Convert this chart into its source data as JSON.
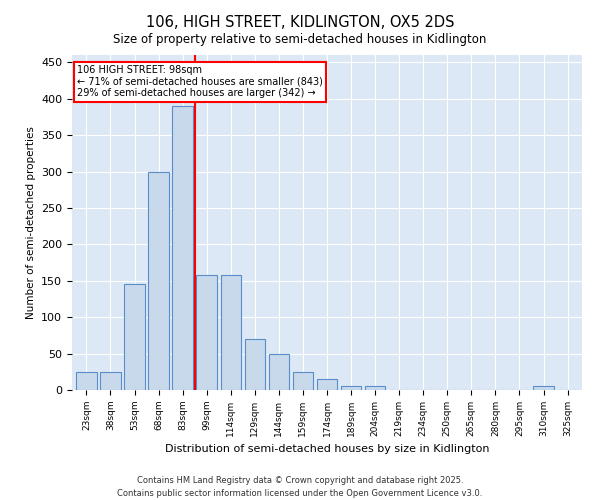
{
  "title": "106, HIGH STREET, KIDLINGTON, OX5 2DS",
  "subtitle": "Size of property relative to semi-detached houses in Kidlington",
  "xlabel": "Distribution of semi-detached houses by size in Kidlington",
  "ylabel": "Number of semi-detached properties",
  "bins": [
    "23sqm",
    "38sqm",
    "53sqm",
    "68sqm",
    "83sqm",
    "99sqm",
    "114sqm",
    "129sqm",
    "144sqm",
    "159sqm",
    "174sqm",
    "189sqm",
    "204sqm",
    "219sqm",
    "234sqm",
    "250sqm",
    "265sqm",
    "280sqm",
    "295sqm",
    "310sqm",
    "325sqm"
  ],
  "values": [
    25,
    25,
    145,
    300,
    390,
    158,
    158,
    70,
    50,
    25,
    15,
    5,
    5,
    0,
    0,
    0,
    0,
    0,
    0,
    5,
    0
  ],
  "bar_color": "#c9d9ec",
  "bar_edge_color": "#5b8dc8",
  "annotation_text": "106 HIGH STREET: 98sqm\n← 71% of semi-detached houses are smaller (843)\n29% of semi-detached houses are larger (342) →",
  "bg_color": "#dce8f5",
  "footer_text": "Contains HM Land Registry data © Crown copyright and database right 2025.\nContains public sector information licensed under the Open Government Licence v3.0.",
  "ylim": [
    0,
    460
  ],
  "yticks": [
    0,
    50,
    100,
    150,
    200,
    250,
    300,
    350,
    400,
    450
  ]
}
